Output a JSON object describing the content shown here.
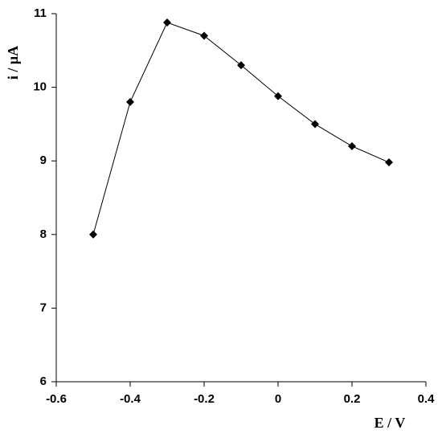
{
  "chart_data": {
    "type": "line",
    "x_label": "E / V",
    "y_label": "i / μA",
    "x": [
      -0.5,
      -0.4,
      -0.3,
      -0.2,
      -0.1,
      0,
      0.1,
      0.2,
      0.3
    ],
    "values": [
      8.0,
      9.8,
      10.88,
      10.7,
      10.3,
      9.88,
      9.5,
      9.2,
      8.98
    ],
    "color": "#000000",
    "marker": "diamond",
    "xlim": [
      -0.6,
      0.4
    ],
    "xticks": [
      -0.6,
      -0.4,
      -0.2,
      0,
      0.2,
      0.4
    ],
    "ylim": [
      6,
      11
    ],
    "yticks": [
      6,
      7,
      8,
      9,
      10,
      11
    ],
    "grid": false
  }
}
